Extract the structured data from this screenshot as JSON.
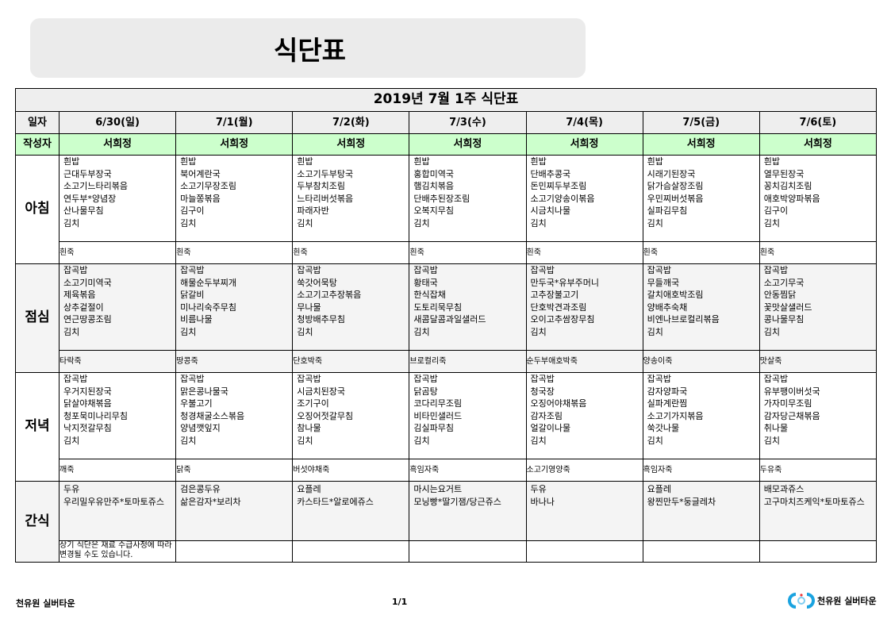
{
  "header": {
    "title": "식단표"
  },
  "table": {
    "title": "2019년 7월 1주 식단표",
    "date_label": "일자",
    "author_label": "작성자",
    "dates": [
      "6/30(일)",
      "7/1(월)",
      "7/2(화)",
      "7/3(수)",
      "7/4(목)",
      "7/5(금)",
      "7/6(토)"
    ],
    "authors": [
      "서희정",
      "서희정",
      "서희정",
      "서희정",
      "서희정",
      "서희정",
      "서희정"
    ],
    "meals": [
      {
        "label": "아침",
        "gray": false,
        "menus": [
          [
            "흰밥",
            "근대두부장국",
            "소고기느타리볶음",
            "연두부*양념장",
            "산나물무침",
            "김치"
          ],
          [
            "흰밥",
            "북어계란국",
            "소고기무장조림",
            "마늘쫑볶음",
            "김구이",
            "김치"
          ],
          [
            "흰밥",
            "소고기두부탕국",
            "두부참치조림",
            "느타리버섯볶음",
            "파래자반",
            "김치"
          ],
          [
            "흰밥",
            "홍합미역국",
            "햄김치볶음",
            "단배추된장조림",
            "오복지무침",
            "김치"
          ],
          [
            "흰밥",
            "단배추콩국",
            "돈민찌두부조림",
            "소고기양송이볶음",
            "시금치나물",
            "김치"
          ],
          [
            "흰밥",
            "시래기된장국",
            "닭가슴살장조림",
            "우민찌버섯볶음",
            "실파김무침",
            "김치"
          ],
          [
            "흰밥",
            "열무된장국",
            "꽁치김치조림",
            "애호박양파볶음",
            "김구이",
            "김치"
          ]
        ],
        "porridge": [
          "흰죽",
          "흰죽",
          "흰죽",
          "흰죽",
          "흰죽",
          "흰죽",
          "흰죽"
        ]
      },
      {
        "label": "점심",
        "gray": true,
        "menus": [
          [
            "잡곡밥",
            "소고기미역국",
            "제육볶음",
            "상추겉절이",
            "연근땅콩조림",
            "김치"
          ],
          [
            "잡곡밥",
            "해물순두부찌개",
            "닭갈비",
            "미나리숙주무침",
            "비름나물",
            "김치"
          ],
          [
            "잡곡밥",
            "쑥갓어묵탕",
            "소고기고추장볶음",
            "무나물",
            "청방배추무침",
            "김치"
          ],
          [
            "잡곡밥",
            "황태국",
            "한식잡채",
            "도토리묵무침",
            "새콤달콤과일샐러드",
            "김치"
          ],
          [
            "잡곡밥",
            "만두국*유부주머니",
            "고추장불고기",
            "단호박견과조림",
            "오이고추쌈장무침",
            "김치"
          ],
          [
            "잡곡밥",
            "무들깨국",
            "갈치애호박조림",
            "양배추숙채",
            "비엔나브로컬리볶음",
            "김치"
          ],
          [
            "잡곡밥",
            "소고기무국",
            "안동찜닭",
            "꽃맛살샐러드",
            "콩나물무침",
            "김치"
          ]
        ],
        "porridge": [
          "타락죽",
          "땅콩죽",
          "단호박죽",
          "브로컬리죽",
          "순두부애호박죽",
          "양송이죽",
          "맛살죽"
        ]
      },
      {
        "label": "저녁",
        "gray": false,
        "menus": [
          [
            "잡곡밥",
            "우거지된장국",
            "닭살야채볶음",
            "청포묵미나리무침",
            "낙지젓갈무침",
            "김치"
          ],
          [
            "잡곡밥",
            "맑은콩나물국",
            "우불고기",
            "청경채굴소스볶음",
            "양념깻잎지",
            "김치"
          ],
          [
            "잡곡밥",
            "시금치된장국",
            "조기구이",
            "오징어젓갈무침",
            "참나물",
            "김치"
          ],
          [
            "잡곡밥",
            "닭곰탕",
            "코다리무조림",
            "비타민샐러드",
            "김실파무침",
            "김치"
          ],
          [
            "잡곡밥",
            "청국장",
            "오징어야채볶음",
            "감자조림",
            "얼갈이나물",
            "김치"
          ],
          [
            "잡곡밥",
            "감자양파국",
            "실파계란찜",
            "소고기가지볶음",
            "쑥갓나물",
            "김치"
          ],
          [
            "잡곡밥",
            "유부팽이버섯국",
            "가자미무조림",
            "감자당근채볶음",
            "취나물",
            "김치"
          ]
        ],
        "porridge": [
          "깨죽",
          "닭죽",
          "버섯야채죽",
          "흑임자죽",
          "소고기영양죽",
          "흑임자죽",
          "두유죽"
        ]
      }
    ],
    "snack": {
      "label": "간식",
      "menus": [
        [
          "두유",
          "우리밀우유만주*토마토쥬스"
        ],
        [
          "검은콩두유",
          "삶은감자*보리차"
        ],
        [
          "요플레",
          "카스타드*알로에쥬스"
        ],
        [
          "마시는요거트",
          "모닝빵*딸기잼/당근쥬스"
        ],
        [
          "두유",
          "바나나"
        ],
        [
          "요플레",
          "왕찐만두*둥글레차"
        ],
        [
          "배모과쥬스",
          "고구마치즈케익*토마토쥬스"
        ]
      ]
    },
    "note": "상기 식단은 재료 수급사정에 따라 변경될 수도 있습니다."
  },
  "footer": {
    "left": "천유원 실버타운",
    "page": "1/1",
    "logo_text": "천유원 실버타운"
  },
  "colors": {
    "author_row": "#ccffcc",
    "header_bg": "#ebebeb",
    "logo_blue": "#1aa3e0"
  }
}
